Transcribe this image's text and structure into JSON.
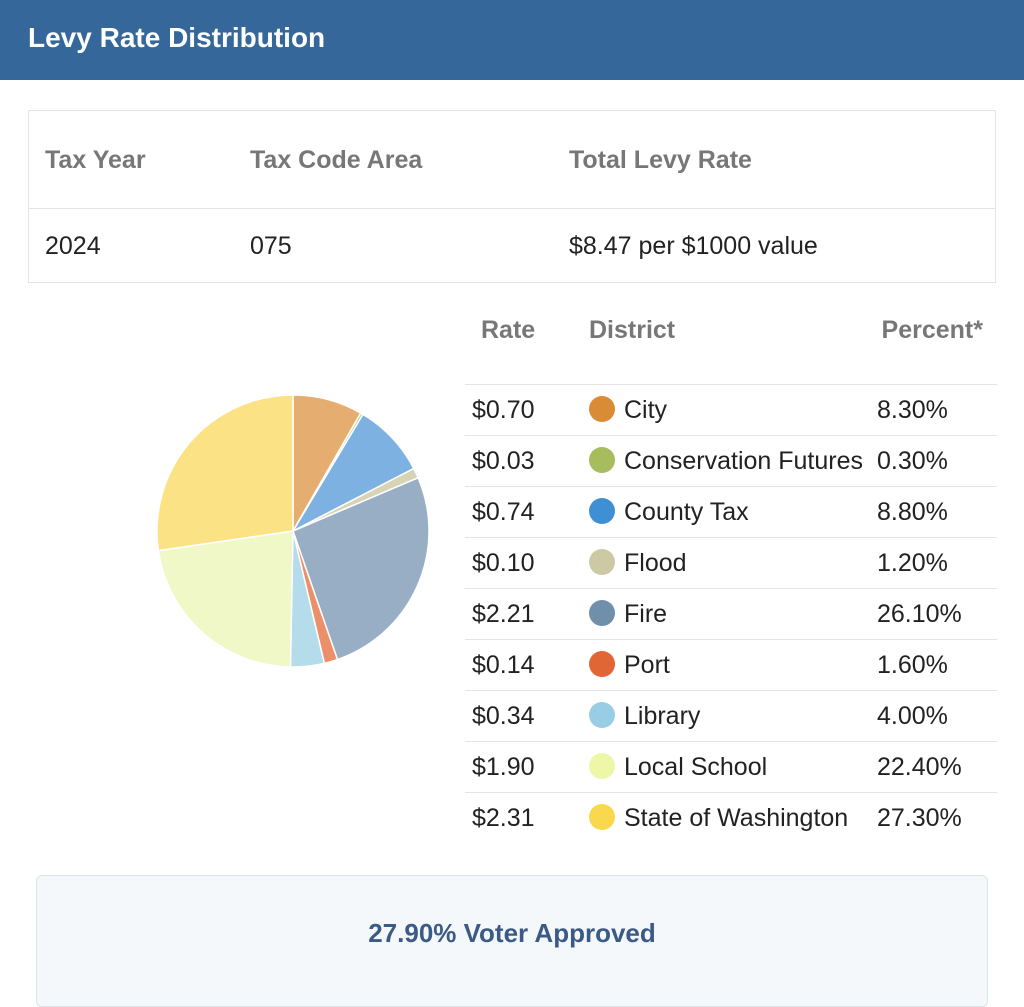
{
  "header": {
    "title": "Levy Rate Distribution"
  },
  "summary": {
    "headers": [
      "Tax Year",
      "Tax Code Area",
      "Total Levy Rate"
    ],
    "row": [
      "2024",
      "075",
      "$8.47 per $1000 value"
    ]
  },
  "table": {
    "headers": [
      "Rate",
      "District",
      "Percent*"
    ],
    "rates": [
      "$0.70",
      "$0.03",
      "$0.74",
      "$0.10",
      "$2.21",
      "$0.14",
      "$0.34",
      "$1.90",
      "$2.31"
    ],
    "legend_colors": [
      "#d98b35",
      "#a6bd5e",
      "#3f8fd4",
      "#cdc9a4",
      "#6f8fab",
      "#e06636",
      "#99cde6",
      "#eef7a8",
      "#fad84d"
    ]
  },
  "chart_data": {
    "type": "pie",
    "categories": [
      "City",
      "Conservation Futures",
      "County Tax",
      "Flood",
      "Fire",
      "Port",
      "Library",
      "Local School",
      "State of Washington"
    ],
    "values": [
      8.3,
      0.3,
      8.8,
      1.2,
      26.1,
      1.6,
      4.0,
      22.4,
      27.3
    ],
    "value_labels": [
      "8.30%",
      "0.30%",
      "8.80%",
      "1.20%",
      "26.10%",
      "1.60%",
      "4.00%",
      "22.40%",
      "27.30%"
    ],
    "colors": [
      "#e6ad70",
      "#b9c98e",
      "#7db1e2",
      "#d6d4b4",
      "#98aec5",
      "#ec906b",
      "#b5dcea",
      "#eff8c6",
      "#fbe285"
    ]
  },
  "footer": {
    "text": "27.90% Voter Approved"
  }
}
